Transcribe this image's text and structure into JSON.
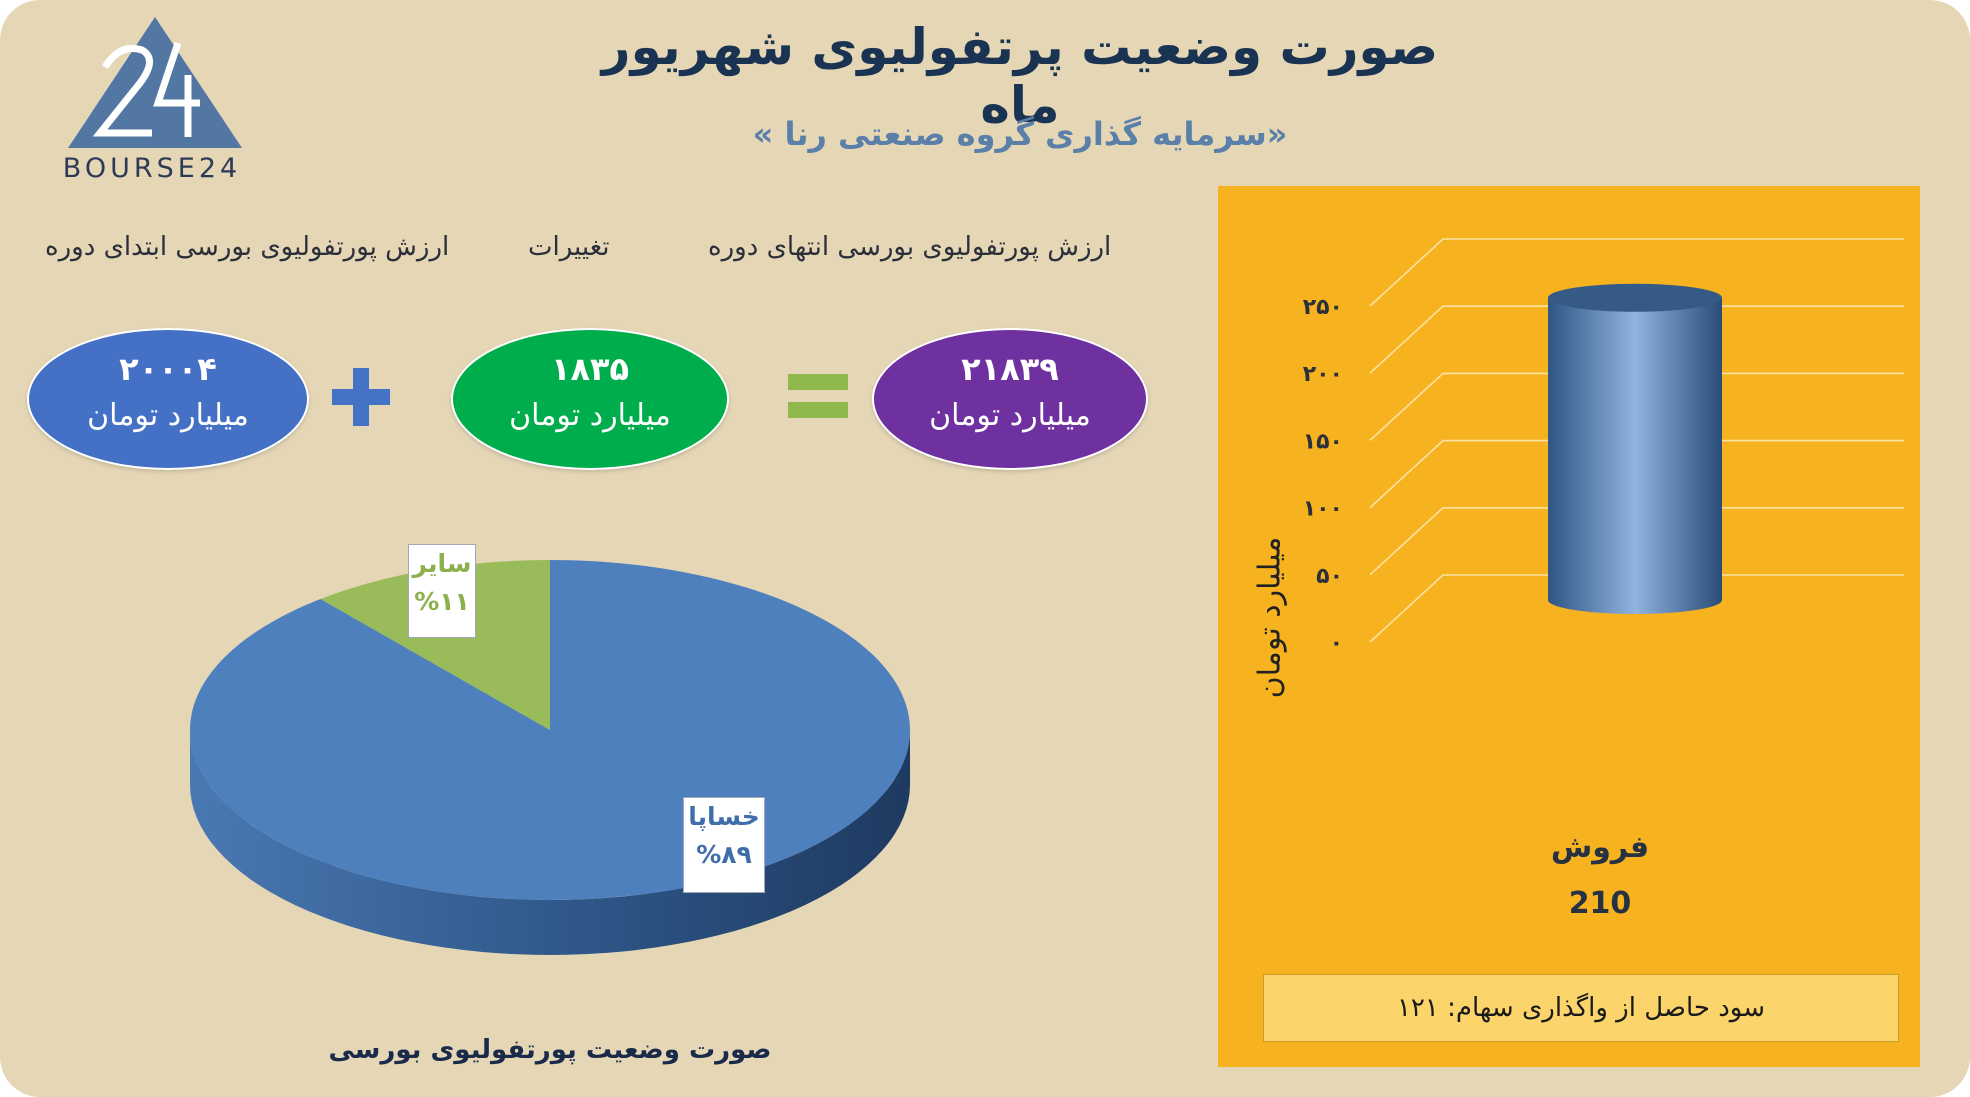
{
  "header": {
    "title": "صورت وضعیت پرتفولیوی شهریور ماه",
    "subtitle": "«سرمایه گذاری گروه صنعتی رنا »",
    "logo_text": "BOURSE24"
  },
  "summary": {
    "label_start": "ارزش پورتفولیوی بورسی ابتدای دوره",
    "label_change": "تغییرات",
    "label_end": "ارزش پورتفولیوی بورسی انتهای دوره",
    "start_value": "۲۰۰۰۴",
    "change_value": "۱۸۳۵",
    "end_value": "۲۱۸۳۹",
    "unit": "میلیارد تومان",
    "colors": {
      "start": "#4470c5",
      "change": "#00ad4c",
      "end": "#7031a0",
      "operator_plus": "#4472c4",
      "operator_equals": "#8cb84c"
    }
  },
  "chart_data": [
    {
      "type": "pie",
      "title": "صورت وضعیت پورتفولیوی بورسی",
      "slices": [
        {
          "label": "خساپا",
          "value": 89,
          "display": "%۸۹",
          "color": "#4e80bd"
        },
        {
          "label": "سایر",
          "value": 11,
          "display": "%۱۱",
          "color": "#9abb59"
        }
      ]
    },
    {
      "type": "bar",
      "categories": [
        "فروش"
      ],
      "values": [
        210
      ],
      "value_labels": [
        "210"
      ],
      "ylabel": "میلیارد تومان",
      "ylim": [
        0,
        250
      ],
      "yticks": [
        "۰",
        "۵۰",
        "۱۰۰",
        "۱۵۰",
        "۲۰۰",
        "۲۵۰"
      ],
      "grid": true,
      "colors": {
        "background": "#f6b21f",
        "bar": "#4f77a8",
        "grid": "#fbe3a6"
      }
    }
  ],
  "profit_note": "سود حاصل از واگذاری سهام: ۱۲۱"
}
